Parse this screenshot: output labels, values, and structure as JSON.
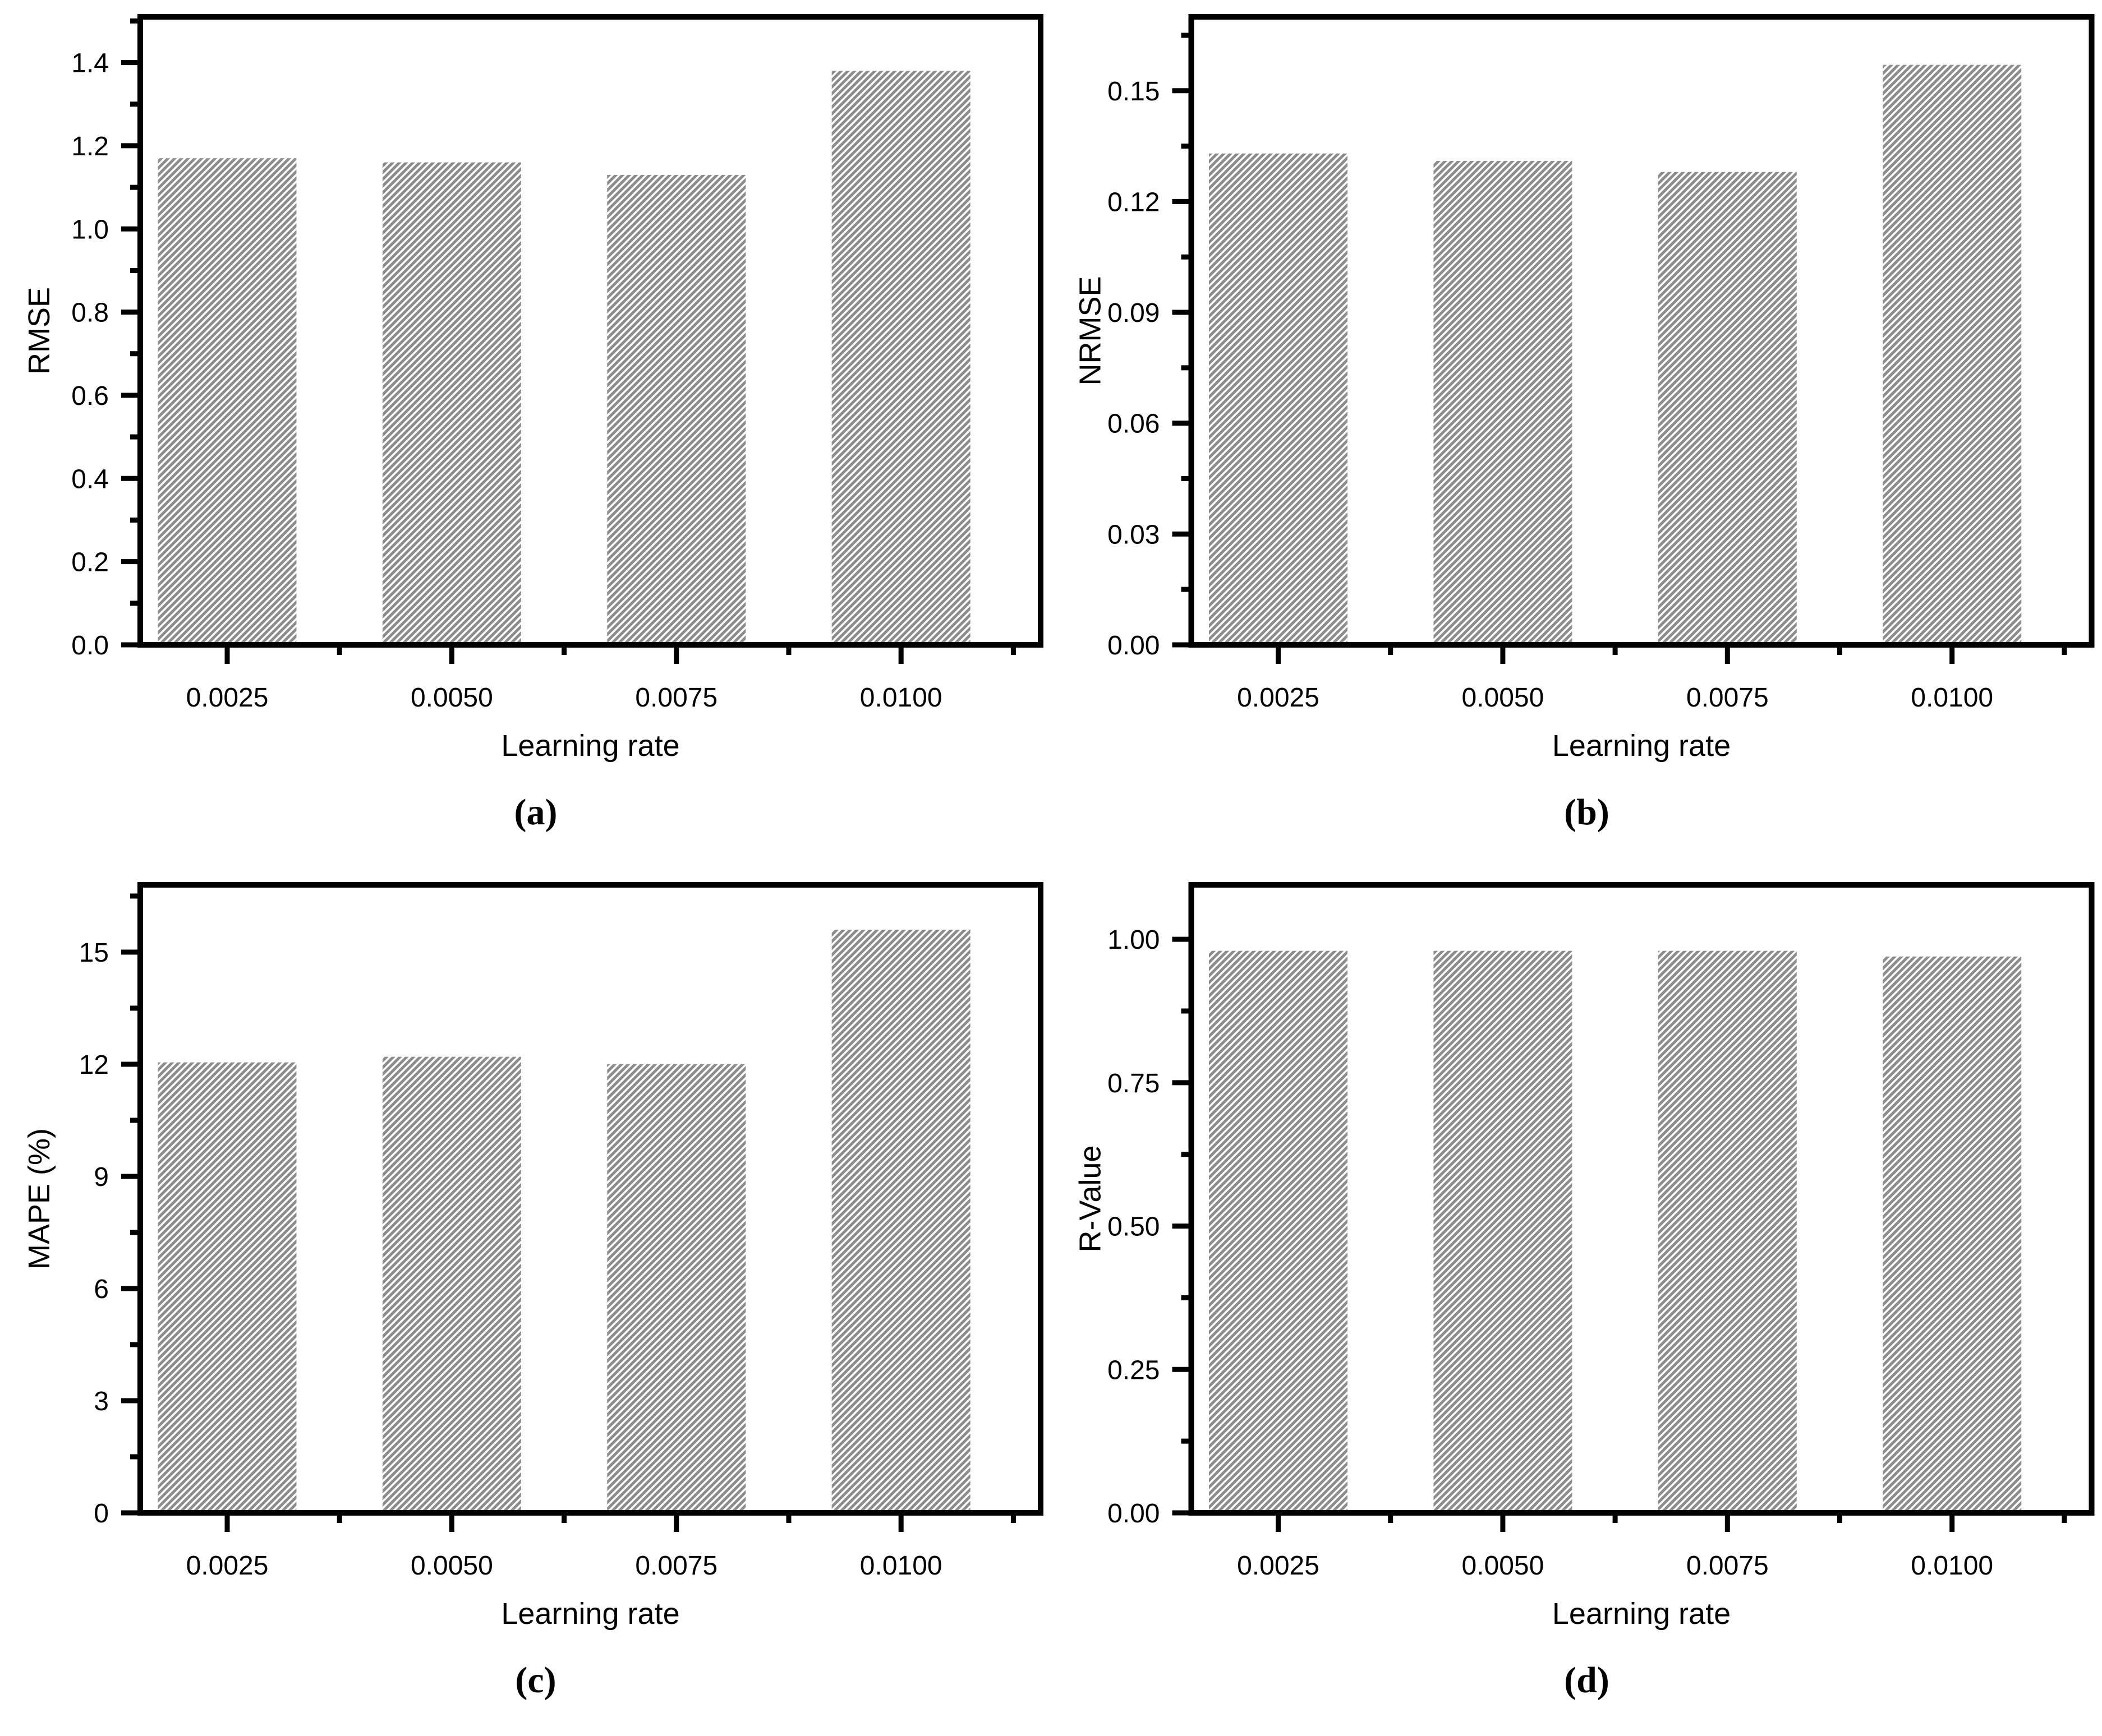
{
  "page": {
    "background": "#ffffff",
    "text_color": "#000000",
    "axis_color": "#000000",
    "bar_fill": "#8c8c8c",
    "hatch_line_color": "#ffffff",
    "hatch_style": "diagonal-forward-slash"
  },
  "chart_data": [
    {
      "type": "bar",
      "caption": "(a)",
      "ylabel": "RMSE",
      "xlabel": "Learning rate",
      "categories": [
        "0.0025",
        "0.0050",
        "0.0075",
        "0.0100"
      ],
      "values": [
        1.17,
        1.16,
        1.13,
        1.38
      ],
      "ylim": [
        0,
        1.51
      ],
      "yticks": [
        {
          "value": 0.0,
          "label": "0.0"
        },
        {
          "value": 0.2,
          "label": "0.2"
        },
        {
          "value": 0.4,
          "label": "0.4"
        },
        {
          "value": 0.6,
          "label": "0.6"
        },
        {
          "value": 0.8,
          "label": "0.8"
        },
        {
          "value": 1.0,
          "label": "1.0"
        },
        {
          "value": 1.2,
          "label": "1.2"
        },
        {
          "value": 1.4,
          "label": "1.4"
        }
      ],
      "minor_tick_step": 0.1,
      "grid": false,
      "legend": "none"
    },
    {
      "type": "bar",
      "caption": "(b)",
      "ylabel": "NRMSE",
      "xlabel": "Learning rate",
      "categories": [
        "0.0025",
        "0.0050",
        "0.0075",
        "0.0100"
      ],
      "values": [
        0.133,
        0.131,
        0.128,
        0.157
      ],
      "ylim": [
        0,
        0.17
      ],
      "yticks": [
        {
          "value": 0.0,
          "label": "0.00"
        },
        {
          "value": 0.03,
          "label": "0.03"
        },
        {
          "value": 0.06,
          "label": "0.06"
        },
        {
          "value": 0.09,
          "label": "0.09"
        },
        {
          "value": 0.12,
          "label": "0.12"
        },
        {
          "value": 0.15,
          "label": "0.15"
        }
      ],
      "minor_tick_step": 0.015,
      "grid": false,
      "legend": "none"
    },
    {
      "type": "bar",
      "caption": "(c)",
      "ylabel": "MAPE (%)",
      "xlabel": "Learning rate",
      "categories": [
        "0.0025",
        "0.0050",
        "0.0075",
        "0.0100"
      ],
      "values": [
        12.05,
        12.2,
        12.0,
        15.6
      ],
      "ylim": [
        0,
        16.8
      ],
      "yticks": [
        {
          "value": 0,
          "label": "0"
        },
        {
          "value": 3,
          "label": "3"
        },
        {
          "value": 6,
          "label": "6"
        },
        {
          "value": 9,
          "label": "9"
        },
        {
          "value": 12,
          "label": "12"
        },
        {
          "value": 15,
          "label": "15"
        }
      ],
      "minor_tick_step": 1.5,
      "grid": false,
      "legend": "none"
    },
    {
      "type": "bar",
      "caption": "(d)",
      "ylabel": "R-Value",
      "xlabel": "Learning rate",
      "categories": [
        "0.0025",
        "0.0050",
        "0.0075",
        "0.0100"
      ],
      "values": [
        0.98,
        0.98,
        0.98,
        0.97
      ],
      "ylim": [
        0,
        1.095
      ],
      "yticks": [
        {
          "value": 0.0,
          "label": "0.00"
        },
        {
          "value": 0.25,
          "label": "0.25"
        },
        {
          "value": 0.5,
          "label": "0.50"
        },
        {
          "value": 0.75,
          "label": "0.75"
        },
        {
          "value": 1.0,
          "label": "1.00"
        }
      ],
      "minor_tick_step": 0.125,
      "grid": false,
      "legend": "none"
    }
  ]
}
